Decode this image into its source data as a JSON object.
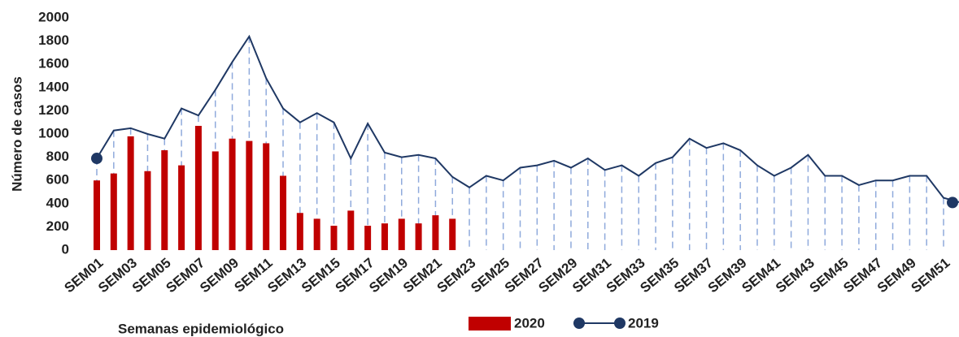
{
  "chart_data": {
    "type": "bar",
    "x_label": "Semanas epidemiológico",
    "y_label": "Número de casos",
    "categories": [
      "SEM01",
      null,
      "SEM03",
      null,
      "SEM05",
      null,
      "SEM07",
      null,
      "SEM09",
      null,
      "SEM11",
      null,
      "SEM13",
      null,
      "SEM15",
      null,
      "SEM17",
      null,
      "SEM19",
      null,
      "SEM21",
      null,
      "SEM23",
      null,
      "SEM25",
      null,
      "SEM27",
      null,
      "SEM29",
      null,
      "SEM31",
      null,
      "SEM33",
      null,
      "SEM35",
      null,
      "SEM37",
      null,
      "SEM39",
      null,
      "SEM41",
      null,
      "SEM43",
      null,
      "SEM45",
      null,
      "SEM47",
      null,
      "SEM49",
      null,
      "SEM51",
      null
    ],
    "series": [
      {
        "name": "2020",
        "type": "bar",
        "color": "#c00000",
        "values": [
          600,
          660,
          980,
          680,
          860,
          730,
          1070,
          850,
          960,
          940,
          920,
          640,
          320,
          270,
          210,
          340,
          210,
          230,
          270,
          230,
          300,
          270,
          null,
          null,
          null,
          null,
          null,
          null,
          null,
          null,
          null,
          null,
          null,
          null,
          null,
          null,
          null,
          null,
          null,
          null,
          null,
          null,
          null,
          null,
          null,
          null,
          null,
          null,
          null,
          null,
          null,
          null
        ]
      },
      {
        "name": "2019",
        "type": "line",
        "color": "#1f3864",
        "drop_line_color": "#8faadc",
        "values": [
          790,
          1030,
          1050,
          1000,
          960,
          1220,
          1160,
          1380,
          1620,
          1840,
          1480,
          1220,
          1100,
          1180,
          1100,
          790,
          1090,
          840,
          800,
          820,
          790,
          630,
          540,
          640,
          600,
          710,
          730,
          770,
          710,
          790,
          690,
          730,
          640,
          750,
          800,
          960,
          880,
          920,
          860,
          730,
          640,
          710,
          820,
          640,
          640,
          560,
          600,
          600,
          640,
          640,
          450,
          410
        ]
      }
    ],
    "ylim": [
      0,
      2000
    ],
    "yticks": [
      0,
      200,
      400,
      600,
      800,
      1000,
      1200,
      1400,
      1600,
      1800,
      2000
    ],
    "grid": false
  }
}
